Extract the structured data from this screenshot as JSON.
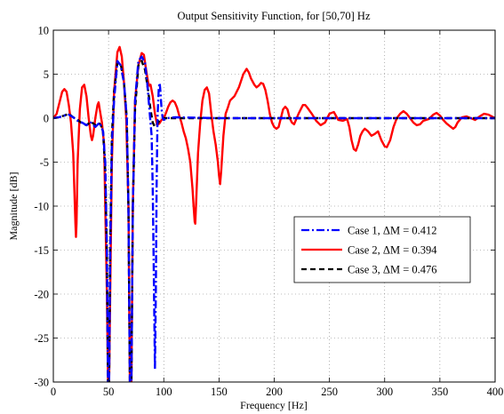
{
  "chart_data": {
    "type": "line",
    "title": "Output Sensitivity Function, for [50,70] Hz",
    "xlabel": "Frequency [Hz]",
    "ylabel": "Magnitude [dB]",
    "xlim": [
      0,
      400
    ],
    "ylim": [
      -30,
      10
    ],
    "xticks": [
      0,
      50,
      100,
      150,
      200,
      250,
      300,
      350,
      400
    ],
    "yticks": [
      10,
      5,
      0,
      -5,
      -10,
      -15,
      -20,
      -25,
      -30
    ],
    "grid": true,
    "legend_position": "center-right",
    "series": [
      {
        "name": "Case 1, ΔM = 0.412",
        "color": "#0000ff",
        "style": "dash-dot",
        "points": [
          [
            0,
            0
          ],
          [
            5,
            0.1
          ],
          [
            10,
            0.3
          ],
          [
            14,
            0.4
          ],
          [
            18,
            0.1
          ],
          [
            22,
            -0.3
          ],
          [
            26,
            -0.5
          ],
          [
            30,
            -0.8
          ],
          [
            34,
            -0.5
          ],
          [
            38,
            -1
          ],
          [
            42,
            -0.5
          ],
          [
            45,
            -1.5
          ],
          [
            47,
            -5
          ],
          [
            48.5,
            -15
          ],
          [
            49.5,
            -30
          ],
          [
            50.5,
            -30
          ],
          [
            51.5,
            -15
          ],
          [
            53,
            -3
          ],
          [
            55,
            2
          ],
          [
            58,
            6.5
          ],
          [
            61,
            6
          ],
          [
            64,
            4
          ],
          [
            66.5,
            0
          ],
          [
            68,
            -10
          ],
          [
            69.3,
            -30
          ],
          [
            70.7,
            -30
          ],
          [
            72,
            -10
          ],
          [
            74,
            2
          ],
          [
            77,
            6.5
          ],
          [
            80,
            7
          ],
          [
            83,
            6.3
          ],
          [
            85,
            4
          ],
          [
            87,
            1
          ],
          [
            89,
            -2
          ],
          [
            90,
            -8
          ],
          [
            91,
            -18
          ],
          [
            92,
            -28.5
          ],
          [
            92.8,
            -20
          ],
          [
            93.5,
            -8
          ],
          [
            94.3,
            0
          ],
          [
            95.5,
            3.5
          ],
          [
            96.3,
            4
          ],
          [
            97,
            3
          ],
          [
            98,
            1
          ],
          [
            99,
            0
          ],
          [
            100,
            -0.2
          ],
          [
            103,
            0
          ],
          [
            110,
            0.1
          ],
          [
            150,
            0
          ],
          [
            200,
            0
          ],
          [
            250,
            0
          ],
          [
            300,
            0
          ],
          [
            350,
            0
          ],
          [
            400,
            0
          ]
        ]
      },
      {
        "name": "Case 2, ΔM = 0.394",
        "color": "#ff0000",
        "style": "solid",
        "points": [
          [
            0,
            0
          ],
          [
            3,
            0.5
          ],
          [
            5,
            1.5
          ],
          [
            8,
            3
          ],
          [
            10,
            3.3
          ],
          [
            12,
            3
          ],
          [
            14,
            1.5
          ],
          [
            16,
            -0.5
          ],
          [
            18,
            -4
          ],
          [
            19,
            -8
          ],
          [
            20,
            -12
          ],
          [
            20.5,
            -13.5
          ],
          [
            21,
            -12
          ],
          [
            22,
            -5
          ],
          [
            24,
            1
          ],
          [
            26,
            3.5
          ],
          [
            28,
            3.8
          ],
          [
            30,
            2.5
          ],
          [
            32,
            0
          ],
          [
            34,
            -2
          ],
          [
            35,
            -2.5
          ],
          [
            36,
            -2
          ],
          [
            38,
            0
          ],
          [
            40,
            1.5
          ],
          [
            41,
            1.8
          ],
          [
            42,
            1
          ],
          [
            44,
            -0.5
          ],
          [
            46,
            -3
          ],
          [
            47,
            -10
          ],
          [
            48.5,
            -20
          ],
          [
            49.5,
            -30
          ],
          [
            50.5,
            -30
          ],
          [
            51.5,
            -20
          ],
          [
            53,
            -5
          ],
          [
            55,
            3
          ],
          [
            58,
            7.5
          ],
          [
            60,
            8.1
          ],
          [
            62,
            7
          ],
          [
            64,
            4
          ],
          [
            66,
            0
          ],
          [
            68,
            -10
          ],
          [
            69.3,
            -30
          ],
          [
            70.7,
            -30
          ],
          [
            72,
            -10
          ],
          [
            74,
            2
          ],
          [
            77,
            6
          ],
          [
            80,
            7.4
          ],
          [
            82,
            7.2
          ],
          [
            84,
            5.5
          ],
          [
            86,
            4
          ],
          [
            87,
            3.7
          ],
          [
            88,
            3.8
          ],
          [
            90,
            2.5
          ],
          [
            92,
            0.5
          ],
          [
            94,
            -0.8
          ],
          [
            96,
            -0.6
          ],
          [
            98,
            -0.2
          ],
          [
            100,
            0
          ],
          [
            102,
            0.6
          ],
          [
            104,
            1.3
          ],
          [
            106,
            1.8
          ],
          [
            108,
            2
          ],
          [
            110,
            1.8
          ],
          [
            112,
            1.2
          ],
          [
            114,
            0.3
          ],
          [
            116,
            -0.5
          ],
          [
            118,
            -1.5
          ],
          [
            120,
            -2.3
          ],
          [
            122,
            -3.5
          ],
          [
            124,
            -5
          ],
          [
            126,
            -8
          ],
          [
            127,
            -10
          ],
          [
            128,
            -11.8
          ],
          [
            128.5,
            -12
          ],
          [
            129.5,
            -9
          ],
          [
            131,
            -4
          ],
          [
            133,
            -0.5
          ],
          [
            135,
            2
          ],
          [
            137,
            3.2
          ],
          [
            139,
            3.5
          ],
          [
            141,
            2.8
          ],
          [
            143,
            0.5
          ],
          [
            145,
            -1.5
          ],
          [
            147,
            -3
          ],
          [
            149,
            -5
          ],
          [
            150,
            -6.5
          ],
          [
            151,
            -7.5
          ],
          [
            152,
            -6
          ],
          [
            154,
            -2
          ],
          [
            156,
            0.5
          ],
          [
            158,
            1.2
          ],
          [
            160,
            2
          ],
          [
            164,
            2.5
          ],
          [
            168,
            3.5
          ],
          [
            172,
            5
          ],
          [
            175,
            5.6
          ],
          [
            177,
            5.2
          ],
          [
            179,
            4.5
          ],
          [
            182,
            3.8
          ],
          [
            184,
            3.5
          ],
          [
            186,
            3.7
          ],
          [
            188,
            4
          ],
          [
            190,
            3.9
          ],
          [
            192,
            3.2
          ],
          [
            194,
            2
          ],
          [
            196,
            0.5
          ],
          [
            198,
            -0.5
          ],
          [
            200,
            -1
          ],
          [
            202,
            -1.2
          ],
          [
            204,
            -1
          ],
          [
            206,
            0
          ],
          [
            208,
            1
          ],
          [
            210,
            1.3
          ],
          [
            212,
            1
          ],
          [
            214,
            0
          ],
          [
            216,
            -0.5
          ],
          [
            218,
            -0.7
          ],
          [
            222,
            0.5
          ],
          [
            226,
            1.5
          ],
          [
            228,
            1.5
          ],
          [
            230,
            1.2
          ],
          [
            234,
            0.5
          ],
          [
            238,
            -0.3
          ],
          [
            242,
            -0.8
          ],
          [
            246,
            -0.5
          ],
          [
            250,
            0.5
          ],
          [
            254,
            0.7
          ],
          [
            258,
            -0.2
          ],
          [
            262,
            -0.3
          ],
          [
            266,
            -0.1
          ],
          [
            268,
            -1
          ],
          [
            270,
            -2.5
          ],
          [
            272,
            -3.5
          ],
          [
            274,
            -3.7
          ],
          [
            276,
            -3
          ],
          [
            278,
            -2
          ],
          [
            280,
            -1.5
          ],
          [
            282,
            -1.2
          ],
          [
            285,
            -1.5
          ],
          [
            288,
            -2
          ],
          [
            291,
            -1.8
          ],
          [
            294,
            -1.5
          ],
          [
            297,
            -2.5
          ],
          [
            300,
            -3.2
          ],
          [
            302,
            -3.3
          ],
          [
            305,
            -2.5
          ],
          [
            308,
            -1
          ],
          [
            311,
            0
          ],
          [
            314,
            0.5
          ],
          [
            317,
            0.8
          ],
          [
            320,
            0.5
          ],
          [
            323,
            0
          ],
          [
            326,
            -0.5
          ],
          [
            329,
            -0.8
          ],
          [
            332,
            -0.7
          ],
          [
            335,
            -0.3
          ],
          [
            340,
            -0.1
          ],
          [
            344,
            0.4
          ],
          [
            347,
            0.6
          ],
          [
            350,
            0.3
          ],
          [
            353,
            -0.2
          ],
          [
            356,
            -0.6
          ],
          [
            359,
            -0.9
          ],
          [
            362,
            -1.2
          ],
          [
            364,
            -1
          ],
          [
            366,
            -0.5
          ],
          [
            370,
            0.1
          ],
          [
            374,
            0.2
          ],
          [
            378,
            0
          ],
          [
            382,
            -0.2
          ],
          [
            386,
            0.2
          ],
          [
            390,
            0.5
          ],
          [
            394,
            0.4
          ],
          [
            397,
            0.2
          ],
          [
            400,
            0
          ]
        ]
      },
      {
        "name": "Case 3, ΔM = 0.476",
        "color": "#000000",
        "style": "dashed",
        "points": [
          [
            0,
            0
          ],
          [
            5,
            0.1
          ],
          [
            10,
            0.3
          ],
          [
            14,
            0.5
          ],
          [
            18,
            0.1
          ],
          [
            22,
            -0.2
          ],
          [
            26,
            -0.6
          ],
          [
            30,
            -0.8
          ],
          [
            34,
            -0.4
          ],
          [
            38,
            -0.8
          ],
          [
            41,
            -0.5
          ],
          [
            43,
            -0.8
          ],
          [
            45,
            -1.5
          ],
          [
            47,
            -6
          ],
          [
            48.5,
            -16
          ],
          [
            49.5,
            -30
          ],
          [
            50.5,
            -30
          ],
          [
            51.5,
            -15
          ],
          [
            53,
            -2
          ],
          [
            55,
            3
          ],
          [
            58,
            6.3
          ],
          [
            61,
            6.2
          ],
          [
            64,
            4
          ],
          [
            66.5,
            0
          ],
          [
            68,
            -10
          ],
          [
            69.3,
            -30
          ],
          [
            70.7,
            -30
          ],
          [
            72,
            -10
          ],
          [
            74,
            1
          ],
          [
            77,
            6
          ],
          [
            80,
            6.5
          ],
          [
            83,
            5.5
          ],
          [
            86,
            3
          ],
          [
            88,
            1
          ],
          [
            90,
            -0.5
          ],
          [
            92,
            -1
          ],
          [
            94,
            -0.7
          ],
          [
            96,
            -0.3
          ],
          [
            98,
            0
          ],
          [
            100,
            0
          ],
          [
            110,
            0
          ],
          [
            150,
            0
          ],
          [
            200,
            0
          ],
          [
            250,
            0
          ],
          [
            300,
            0
          ],
          [
            350,
            0
          ],
          [
            400,
            0
          ]
        ]
      }
    ]
  }
}
